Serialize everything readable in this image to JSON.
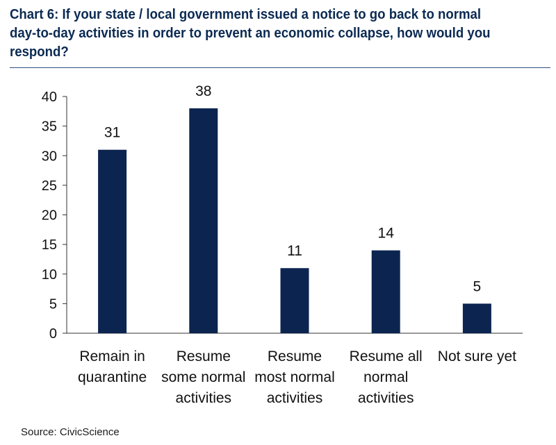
{
  "chart_data": {
    "type": "bar",
    "title": "Chart 6: If your state / local government issued a notice to go back to normal day-to-day activities in order to prevent an economic collapse, how would you respond?",
    "categories": [
      [
        "Remain in",
        "quarantine"
      ],
      [
        "Resume",
        "some normal",
        "activities"
      ],
      [
        "Resume",
        "most normal",
        "activities"
      ],
      [
        "Resume all",
        "normal",
        "activities"
      ],
      [
        "Not sure yet"
      ]
    ],
    "values": [
      31,
      38,
      11,
      14,
      5
    ],
    "ylim": [
      0,
      40
    ],
    "yticks": [
      0,
      5,
      10,
      15,
      20,
      25,
      30,
      35,
      40
    ],
    "bar_color": "#0c2550",
    "grid": false,
    "source": "Source: CivicScience"
  }
}
